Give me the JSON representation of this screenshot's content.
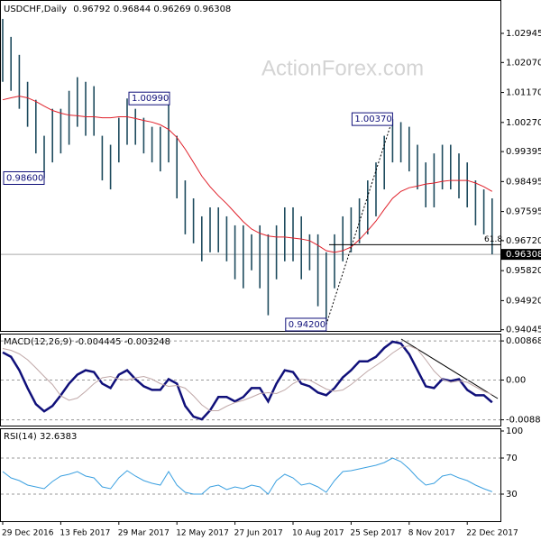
{
  "chart_data": [
    {
      "type": "ohlc",
      "title": "USDCHF,Daily",
      "ohlc_header": [
        0.96792,
        0.96844,
        0.96269,
        0.96308
      ],
      "watermark": "ActionForex.com",
      "color": "#1e4b5e",
      "categories": [
        "29 Dec 2016",
        null,
        null,
        null,
        null,
        null,
        null,
        "13 Feb 2017",
        null,
        null,
        null,
        null,
        null,
        null,
        "29 Mar 2017",
        null,
        null,
        null,
        null,
        null,
        null,
        "12 May 2017",
        null,
        null,
        null,
        null,
        null,
        null,
        "27 Jun 2017",
        null,
        null,
        null,
        null,
        null,
        null,
        "10 Aug 2017",
        null,
        null,
        null,
        null,
        null,
        null,
        "25 Sep 2017",
        null,
        null,
        null,
        null,
        null,
        null,
        "8 Nov 2017",
        null,
        null,
        null,
        null,
        null,
        null,
        "22 Dec 2017",
        null,
        null,
        null
      ],
      "high": [
        1.0338,
        1.0284,
        1.023,
        1.0149,
        1.0095,
        0.9987,
        1.0068,
        1.0068,
        1.0122,
        1.0163,
        1.0149,
        1.0136,
        0.9987,
        0.996,
        1.0041,
        1.0099,
        1.0068,
        1.0041,
        1.0014,
        1.0014,
        1.0095,
        0.9987,
        0.9853,
        0.9799,
        0.9745,
        0.9772,
        0.9772,
        0.9745,
        0.9718,
        0.9718,
        0.9691,
        0.9718,
        0.9691,
        0.9718,
        0.9772,
        0.9772,
        0.9745,
        0.9691,
        0.9691,
        0.9637,
        0.9691,
        0.9745,
        0.9772,
        0.9799,
        0.9853,
        0.9907,
        0.9987,
        1.0037,
        1.0028,
        1.0014,
        0.996,
        0.9907,
        0.9934,
        0.996,
        0.996,
        0.9934,
        0.9907,
        0.9853,
        0.9826,
        0.9799
      ],
      "low": [
        1.0149,
        1.0122,
        1.0068,
        1.0014,
        0.9934,
        0.986,
        0.9907,
        0.9934,
        0.996,
        1.0014,
        0.9987,
        0.9987,
        0.9853,
        0.9826,
        0.9907,
        0.996,
        0.996,
        0.9934,
        0.9907,
        0.988,
        0.9907,
        0.9799,
        0.9691,
        0.9664,
        0.961,
        0.9637,
        0.9637,
        0.961,
        0.9556,
        0.9529,
        0.9583,
        0.9529,
        0.9448,
        0.9556,
        0.961,
        0.961,
        0.9556,
        0.9583,
        0.9475,
        0.942,
        0.9529,
        0.961,
        0.9637,
        0.9664,
        0.9691,
        0.9745,
        0.9826,
        0.9907,
        0.9907,
        0.988,
        0.9826,
        0.9772,
        0.9772,
        0.9826,
        0.9826,
        0.9799,
        0.9772,
        0.9718,
        0.9691,
        0.9631
      ],
      "ma": {
        "color": "#e0202a",
        "values": [
          1.0095,
          1.0101,
          1.0106,
          1.0101,
          1.009,
          1.0076,
          1.0063,
          1.0055,
          1.0049,
          1.0047,
          1.0044,
          1.0044,
          1.0041,
          1.0041,
          1.0044,
          1.0044,
          1.0039,
          1.0033,
          1.0028,
          1.002,
          1.0006,
          0.9982,
          0.9947,
          0.9907,
          0.9866,
          0.9834,
          0.9807,
          0.9783,
          0.9756,
          0.9729,
          0.9707,
          0.9694,
          0.9686,
          0.9683,
          0.9683,
          0.968,
          0.9677,
          0.9672,
          0.9658,
          0.9642,
          0.9637,
          0.9642,
          0.9653,
          0.9675,
          0.9702,
          0.9731,
          0.9766,
          0.9799,
          0.982,
          0.9831,
          0.9836,
          0.9842,
          0.9845,
          0.985,
          0.9853,
          0.9853,
          0.9853,
          0.9845,
          0.9834,
          0.982
        ]
      },
      "ylim": [
        0.9401,
        1.0392
      ],
      "yticks": [
        1.02945,
        {
          "value": 1.0207,
          "label": "1.02070"
        },
        {
          "value": 1.0117,
          "label": "1.01170"
        },
        {
          "value": 1.0027,
          "label": "1.00270"
        },
        0.99395,
        0.98495,
        0.97595,
        {
          "value": 0.9672,
          "label": "0.96720"
        },
        {
          "value": 0.9582,
          "label": "0.95820"
        },
        {
          "value": 0.9492,
          "label": "0.94920"
        },
        0.94045
      ],
      "fib_level": {
        "label": "61.8",
        "value": 0.966
      },
      "annotations": [
        {
          "label": "1.00990",
          "index": 15,
          "value": 1.0099
        },
        {
          "label": "0.98600",
          "index": 5,
          "value": 0.986
        },
        {
          "label": "1.00370",
          "index": 47,
          "value": 1.0037
        },
        {
          "label": "0.94200",
          "index": 39,
          "value": 0.942
        }
      ]
    },
    {
      "type": "line",
      "title": "MACD(12,26,9)",
      "header_values": [
        -0.004445,
        -0.003248
      ],
      "ylim": [
        -0.0101,
        0.0101
      ],
      "yticks": [
        0.00868,
        {
          "value": 0,
          "label": "0.00"
        },
        -0.008818
      ],
      "series": [
        {
          "color": "#10107a",
          "width": 2.5,
          "values": [
            0.00614,
            0.00515,
            0.00218,
            -0.00178,
            -0.00535,
            -0.00693,
            -0.00574,
            -0.00337,
            -0.00079,
            0.00119,
            0.00218,
            0.00178,
            -0.00079,
            -0.00178,
            0.00119,
            0.00218,
            0.0002,
            -0.00139,
            -0.00218,
            -0.00218,
            0.0002,
            -0.00079,
            -0.00574,
            -0.00812,
            -0.00871,
            -0.00673,
            -0.00376,
            -0.00376,
            -0.00475,
            -0.00376,
            -0.00178,
            -0.00178,
            -0.00475,
            -0.00079,
            0.00218,
            0.00178,
            -0.00079,
            -0.00139,
            -0.00277,
            -0.00337,
            -0.00178,
            0.00059,
            0.00218,
            0.00416,
            0.00416,
            0.00515,
            0.00713,
            0.00851,
            0.00812,
            0.00574,
            0.00218,
            -0.00139,
            -0.00178,
            0.0002,
            -0.0002,
            0.0002,
            -0.00218,
            -0.00337,
            -0.00337,
            -0.00495
          ]
        },
        {
          "color": "#c0a8a8",
          "width": 1,
          "values": [
            0.007,
            0.0066,
            0.0058,
            0.0045,
            0.0027,
            0.0008,
            -0.001,
            -0.0035,
            -0.0045,
            -0.004,
            -0.0025,
            -0.0008,
            0.0005,
            0.0008,
            0.0002,
            0,
            0.0005,
            0.0008,
            0.0002,
            -0.0008,
            -0.0014,
            -0.0012,
            -0.0018,
            -0.0035,
            -0.0055,
            -0.0068,
            -0.0068,
            -0.0058,
            -0.005,
            -0.0045,
            -0.0038,
            -0.003,
            -0.0028,
            -0.003,
            -0.0022,
            -0.0008,
            0.0002,
            0,
            -0.001,
            -0.002,
            -0.0025,
            -0.0022,
            -0.001,
            0.0005,
            0.002,
            0.0032,
            0.0045,
            0.006,
            0.0072,
            0.0076,
            0.0068,
            0.0045,
            0.002,
            0.0002,
            -0.0005,
            -0.0002,
            -0.0005,
            -0.0015,
            -0.0025,
            -0.0032
          ]
        }
      ]
    },
    {
      "type": "line",
      "title": "RSI(14)",
      "header_values": [
        32.6383
      ],
      "ylim": [
        0,
        100
      ],
      "yticks": [
        100,
        70,
        30
      ],
      "series": [
        {
          "color": "#3ba0e0",
          "width": 1,
          "values": [
            55,
            48,
            45,
            40,
            38,
            36,
            44,
            50,
            52,
            55,
            50,
            48,
            38,
            36,
            48,
            56,
            50,
            45,
            42,
            40,
            55,
            40,
            32,
            30,
            30,
            38,
            40,
            35,
            38,
            36,
            40,
            38,
            30,
            45,
            52,
            48,
            40,
            42,
            38,
            32,
            45,
            55,
            56,
            58,
            60,
            62,
            65,
            70,
            66,
            58,
            48,
            40,
            42,
            50,
            52,
            48,
            45,
            40,
            36,
            32.6
          ]
        }
      ]
    }
  ]
}
